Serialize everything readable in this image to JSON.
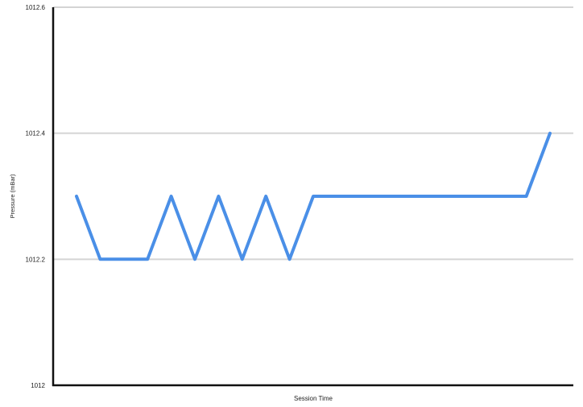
{
  "chart_data": {
    "type": "line",
    "xlabel": "Session Time",
    "ylabel": "Pressure (mBar)",
    "ylim": [
      1012,
      1012.6
    ],
    "yticks": [
      1012,
      1012.2,
      1012.4,
      1012.6
    ],
    "ytick_labels": [
      "1012",
      "1012.2",
      "1012.4",
      "1012.6"
    ],
    "grid": true,
    "legend": "none",
    "x": [
      1,
      2,
      3,
      4,
      5,
      6,
      7,
      8,
      9,
      10,
      11,
      12,
      13,
      14,
      15,
      16,
      17,
      18,
      19,
      20,
      21
    ],
    "series": [
      {
        "color": "#4a8fe7",
        "values": [
          1012.3,
          1012.2,
          1012.2,
          1012.2,
          1012.3,
          1012.2,
          1012.3,
          1012.2,
          1012.3,
          1012.2,
          1012.3,
          1012.3,
          1012.3,
          1012.3,
          1012.3,
          1012.3,
          1012.3,
          1012.3,
          1012.3,
          1012.3,
          1012.4
        ]
      }
    ],
    "colors": {
      "gridline": "#d4d4d4",
      "axis": "#111111"
    }
  }
}
